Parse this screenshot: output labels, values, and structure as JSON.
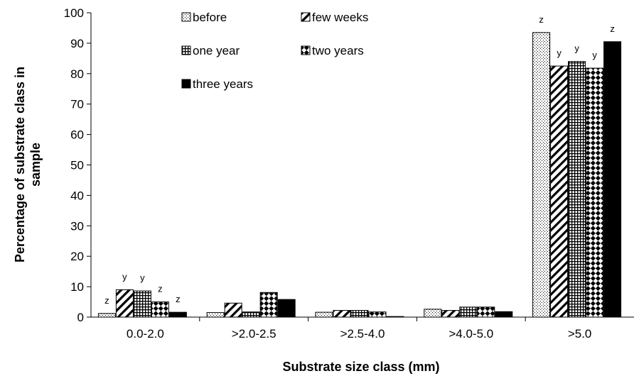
{
  "chart_data": {
    "type": "bar",
    "title": "",
    "xlabel": "Substrate size class (mm)",
    "ylabel_lines": [
      "Percentage of substrate class in",
      "sample"
    ],
    "ylim": [
      0,
      100
    ],
    "yticks": [
      0,
      10,
      20,
      30,
      40,
      50,
      60,
      70,
      80,
      90,
      100
    ],
    "categories": [
      "0.0-2.0",
      ">2.0-2.5",
      ">2.5-4.0",
      ">4.0-5.0",
      ">5.0"
    ],
    "series": [
      {
        "name": "before",
        "pattern": "dots",
        "values": [
          1.2,
          1.5,
          1.6,
          2.6,
          93.5
        ]
      },
      {
        "name": "few weeks",
        "pattern": "diag",
        "values": [
          9.0,
          4.6,
          2.2,
          2.2,
          82.5
        ]
      },
      {
        "name": "one year",
        "pattern": "grid",
        "values": [
          8.6,
          1.7,
          2.2,
          3.3,
          84.0
        ]
      },
      {
        "name": "two years",
        "pattern": "checks",
        "values": [
          5.0,
          8.1,
          1.7,
          3.3,
          81.8
        ]
      },
      {
        "name": "three years",
        "pattern": "solid",
        "values": [
          1.6,
          5.8,
          0.2,
          1.8,
          90.5
        ]
      }
    ],
    "significance_labels": [
      [
        "z",
        "y",
        "y",
        "z",
        "z"
      ],
      [
        "",
        "",
        "",
        "",
        ""
      ],
      [
        "",
        "",
        "",
        "",
        ""
      ],
      [
        "",
        "",
        "",
        "",
        ""
      ],
      [
        "z",
        "y",
        "y",
        "y",
        "z"
      ]
    ],
    "grid": false,
    "legend_position": "top-center"
  }
}
